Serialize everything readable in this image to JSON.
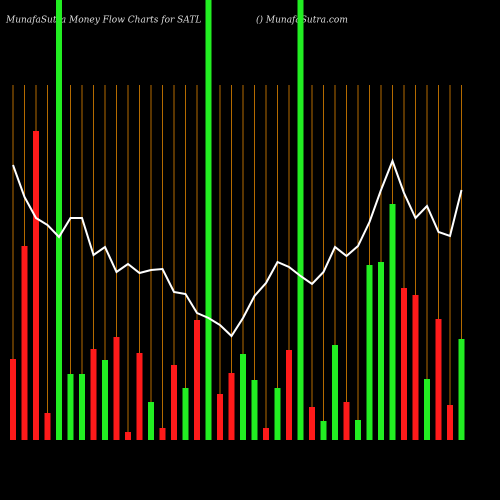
{
  "chart_data": {
    "type": "bar",
    "title": "MunafaSutra  Money Flow  Charts for SATL",
    "subtitle": "() MunafaSutra.com",
    "categories": [
      null,
      null,
      null,
      null,
      null,
      null,
      null,
      null,
      null,
      null,
      null,
      null,
      null,
      null,
      null,
      null,
      null,
      null,
      null,
      null,
      null,
      null,
      null,
      null,
      null,
      null,
      null,
      null,
      null,
      null,
      null,
      null,
      null,
      null,
      null,
      null,
      null,
      null,
      null,
      null
    ],
    "ylim": [
      0,
      440
    ],
    "grid_color": "#b36a00",
    "series": [
      {
        "type": "bar",
        "values": [
          81,
          194,
          309,
          27,
          440,
          66,
          66,
          91,
          80,
          103,
          8,
          87,
          38,
          12,
          75,
          52,
          120,
          440,
          46,
          67,
          86,
          60,
          12,
          52,
          90,
          440,
          33,
          19,
          95,
          38,
          20,
          175,
          178,
          236,
          152,
          145,
          61,
          121,
          35,
          101
        ],
        "colors": [
          "#ff1a1a",
          "#ff1a1a",
          "#ff1a1a",
          "#ff1a1a",
          "#22ee22",
          "#22ee22",
          "#22ee22",
          "#ff1a1a",
          "#22ee22",
          "#ff1a1a",
          "#ff1a1a",
          "#ff1a1a",
          "#22ee22",
          "#ff1a1a",
          "#ff1a1a",
          "#22ee22",
          "#ff1a1a",
          "#22ee22",
          "#ff1a1a",
          "#ff1a1a",
          "#22ee22",
          "#22ee22",
          "#ff1a1a",
          "#22ee22",
          "#ff1a1a",
          "#22ee22",
          "#ff1a1a",
          "#22ee22",
          "#22ee22",
          "#ff1a1a",
          "#22ee22",
          "#22ee22",
          "#22ee22",
          "#22ee22",
          "#ff1a1a",
          "#ff1a1a",
          "#22ee22",
          "#ff1a1a",
          "#ff1a1a",
          "#22ee22"
        ]
      },
      {
        "type": "line",
        "color": "#ffffff",
        "values": [
          275,
          243,
          222,
          215,
          203,
          222,
          222,
          185,
          193,
          168,
          176,
          167,
          170,
          171,
          148,
          146,
          127,
          122,
          115,
          104,
          122,
          144,
          157,
          178,
          173,
          164,
          156,
          168,
          193,
          184,
          194,
          218,
          250,
          279,
          247,
          222,
          234,
          208,
          204,
          250
        ]
      }
    ]
  }
}
